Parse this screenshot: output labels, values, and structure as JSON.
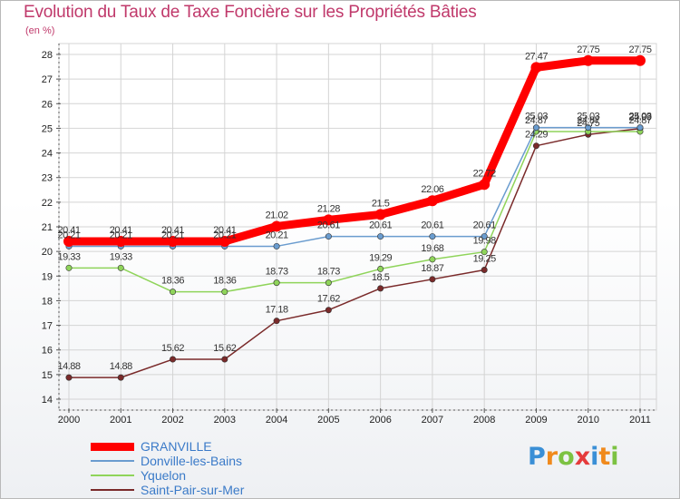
{
  "page": {
    "title": "Evolution du Taux de Taxe Foncière sur les Propriétés Bâties",
    "unit": "(en %)"
  },
  "chart_data": {
    "type": "line",
    "title": "Evolution du Taux de Taxe Foncière sur les Propriétés Bâties",
    "ylabel": "(en %)",
    "xlabel": "",
    "ylim": [
      14,
      28
    ],
    "yticks": [
      "14",
      "15",
      "16",
      "17",
      "18",
      "19",
      "20",
      "21",
      "22",
      "23",
      "24",
      "25",
      "26",
      "27",
      "28"
    ],
    "grid": true,
    "categories": [
      "2000",
      "2001",
      "2002",
      "2003",
      "2004",
      "2005",
      "2006",
      "2007",
      "2008",
      "2009",
      "2010",
      "2011"
    ],
    "series": [
      {
        "name": "GRANVILLE",
        "color": "#ff0000",
        "values": [
          20.41,
          20.41,
          20.41,
          20.41,
          21.02,
          21.28,
          21.5,
          22.06,
          22.72,
          27.47,
          27.75,
          27.75
        ],
        "labels": [
          "20.41",
          "20.41",
          "20.41",
          "20.41",
          "21.02",
          "21.28",
          "21.5",
          "22.06",
          "22.72",
          "27.47",
          "27.75",
          "27.75"
        ]
      },
      {
        "name": "Donville-les-Bains",
        "color": "#6a9ccf",
        "values": [
          20.21,
          20.21,
          20.21,
          20.21,
          20.21,
          20.61,
          20.61,
          20.61,
          20.61,
          25.03,
          25.03,
          25.03
        ],
        "labels": [
          "20.21",
          "20.21",
          "20.21",
          "20.21",
          "20.21",
          "20.61",
          "20.61",
          "20.61",
          "20.61",
          "25.03",
          "25.03",
          "25.03"
        ]
      },
      {
        "name": "Yquelon",
        "color": "#8fd45a",
        "values": [
          19.33,
          19.33,
          18.36,
          18.36,
          18.73,
          18.73,
          19.29,
          19.68,
          19.98,
          24.87,
          24.87,
          24.87
        ],
        "labels": [
          "19.33",
          "19.33",
          "18.36",
          "18.36",
          "18.73",
          "18.73",
          "19.29",
          "19.68",
          "19.98",
          "24.87",
          "24.87",
          "24.87"
        ]
      },
      {
        "name": "Saint-Pair-sur-Mer",
        "color": "#7a2a2a",
        "values": [
          14.88,
          14.88,
          15.62,
          15.62,
          17.18,
          17.62,
          18.5,
          18.87,
          19.25,
          24.29,
          24.75,
          24.99
        ],
        "labels": [
          "14.88",
          "14.88",
          "15.62",
          "15.62",
          "17.18",
          "17.62",
          "18.5",
          "18.87",
          "19.25",
          "24.29",
          "24.75",
          "24.99"
        ]
      }
    ],
    "legend": "bottom-left"
  },
  "logo": {
    "text": "Proxiti",
    "letters": [
      "P",
      "r",
      "o",
      "x",
      "i",
      "t",
      "i"
    ],
    "colors": [
      "#3a8fd6",
      "#f08a1c",
      "#7cc242",
      "#e53b3b",
      "#3a8fd6",
      "#f08a1c",
      "#7cc242"
    ]
  }
}
